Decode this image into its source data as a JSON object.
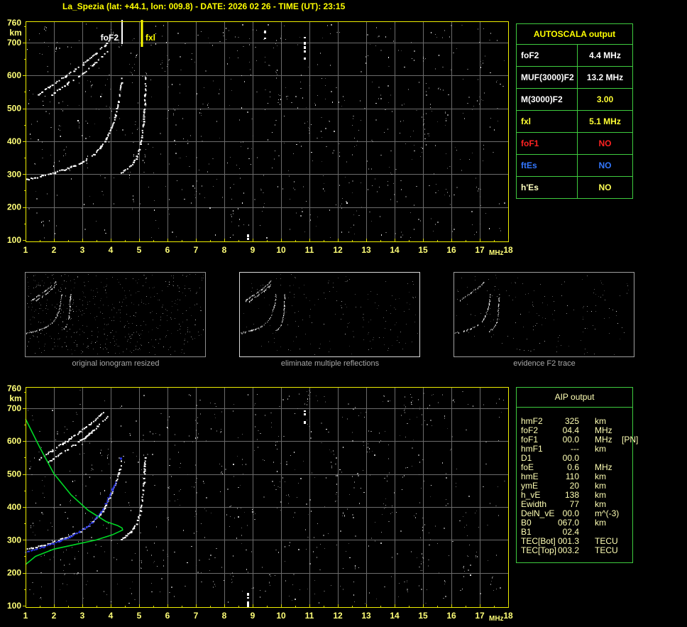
{
  "title": "La_Spezia (lat: +44.1, lon: 009.8) - DATE: 2026 02 26 - TIME (UT): 23:15",
  "colors": {
    "background": "#000000",
    "title_text": "#ffff00",
    "axis_label": "#ffff78",
    "plot_border": "#eded00",
    "grid": "#6b6b6b",
    "trace_white": "#ffffff",
    "profile_green": "#00d926",
    "restored_blue": "#2b37e8",
    "table_border": "#3ecb3e",
    "table_white": "#ffffff",
    "table_yellow": "#ffff33",
    "table_red": "#ff2222",
    "table_blue": "#3377ff",
    "aip_text": "#ffffb4",
    "caption_gray": "#a8a8a8"
  },
  "autoscala": {
    "title": "AUTOSCALA output",
    "rows": [
      {
        "label": "foF2",
        "value": "4.4 MHz",
        "label_color": "#ffffff",
        "value_color": "#ffffff"
      },
      {
        "label": "MUF(3000)F2",
        "value": "13.2 MHz",
        "label_color": "#ffffff",
        "value_color": "#ffffff"
      },
      {
        "label": "M(3000)F2",
        "value": "3.00",
        "label_color": "#ffffff",
        "value_color": "#ffff33"
      },
      {
        "label": "fxl",
        "value": "5.1 MHz",
        "label_color": "#ffff33",
        "value_color": "#ffff33"
      },
      {
        "label": "foF1",
        "value": "NO",
        "label_color": "#ff2222",
        "value_color": "#ff2222"
      },
      {
        "label": "ftEs",
        "value": "NO",
        "label_color": "#3377ff",
        "value_color": "#3377ff"
      },
      {
        "label": "h'Es",
        "value": "NO",
        "label_color": "#ffffc0",
        "value_color": "#ffff55"
      }
    ]
  },
  "thumbnails": [
    {
      "caption": "original ionogram resized"
    },
    {
      "caption": "eliminate multiple reflections"
    },
    {
      "caption": "evidence F2 trace"
    }
  ],
  "aip": {
    "title": "AIP output",
    "rows": [
      {
        "label": "hmF2",
        "value": "325",
        "unit": "km",
        "extra": ""
      },
      {
        "label": "foF2",
        "value": "04.4",
        "unit": "MHz",
        "extra": ""
      },
      {
        "label": "foF1",
        "value": "00.0",
        "unit": "MHz",
        "extra": "[PN]"
      },
      {
        "label": "hmF1",
        "value": "---",
        "unit": "km",
        "extra": ""
      },
      {
        "label": "D1",
        "value": "00.0",
        "unit": "",
        "extra": ""
      },
      {
        "label": "foE",
        "value": "0.6",
        "unit": "MHz",
        "extra": ""
      },
      {
        "label": "hmE",
        "value": "110",
        "unit": "km",
        "extra": ""
      },
      {
        "label": "ymE",
        "value": "20",
        "unit": "km",
        "extra": ""
      },
      {
        "label": "h_vE",
        "value": "138",
        "unit": "km",
        "extra": ""
      },
      {
        "label": "Ewidth",
        "value": "77",
        "unit": "km",
        "extra": ""
      },
      {
        "label": "DelN_vE",
        "value": "00.0",
        "unit": "m^(-3)",
        "extra": ""
      },
      {
        "label": "B0",
        "value": "067.0",
        "unit": "km",
        "extra": ""
      },
      {
        "label": "B1",
        "value": "02.4",
        "unit": "",
        "extra": ""
      },
      {
        "label": "TEC[Bot]",
        "value": "001.3",
        "unit": "TECU",
        "extra": ""
      },
      {
        "label": "TEC[Top]",
        "value": "003.2",
        "unit": "TECU",
        "extra": ""
      }
    ]
  },
  "chart_data": [
    {
      "type": "scatter",
      "id": "top-ionogram",
      "title": "recorded ionogram with AUTOSCALA critical frequency markers",
      "xlabel": "MHz",
      "ylabel": "km",
      "xlim": [
        1,
        18
      ],
      "ylim": [
        100,
        760
      ],
      "grid": true,
      "x_ticks": [
        1,
        2,
        3,
        4,
        5,
        6,
        7,
        8,
        9,
        10,
        11,
        12,
        13,
        14,
        15,
        16,
        17,
        18
      ],
      "y_ticks": [
        760,
        700,
        600,
        500,
        400,
        300,
        200,
        100
      ],
      "markers": [
        {
          "label": "foF2",
          "freq_mhz": 4.4,
          "color": "#ffffff"
        },
        {
          "label": "fxl",
          "freq_mhz": 5.1,
          "color": "#ffff00"
        }
      ],
      "series": [
        {
          "name": "F2 ordinary trace",
          "color": "#ffffff",
          "gap": 0.18,
          "size": 2,
          "points": [
            [
              1.0,
              285
            ],
            [
              1.5,
              295
            ],
            [
              2.0,
              306
            ],
            [
              2.5,
              320
            ],
            [
              2.9,
              334
            ],
            [
              3.2,
              349
            ],
            [
              3.45,
              366
            ],
            [
              3.65,
              386
            ],
            [
              3.8,
              406
            ],
            [
              3.95,
              432
            ],
            [
              4.08,
              460
            ],
            [
              4.18,
              492
            ],
            [
              4.27,
              528
            ],
            [
              4.33,
              562
            ],
            [
              4.37,
              600
            ]
          ]
        },
        {
          "name": "F2 extraordinary trace",
          "color": "#ffffff",
          "gap": 0.22,
          "size": 2,
          "points": [
            [
              4.3,
              302
            ],
            [
              4.55,
              316
            ],
            [
              4.75,
              333
            ],
            [
              4.9,
              354
            ],
            [
              5.0,
              380
            ],
            [
              5.08,
              415
            ],
            [
              5.13,
              455
            ],
            [
              5.17,
              505
            ],
            [
              5.2,
              560
            ],
            [
              5.22,
              600
            ]
          ]
        },
        {
          "name": "second hop trace 1",
          "color": "#ffffff",
          "gap": 0.3,
          "size": 2,
          "points": [
            [
              1.45,
              545
            ],
            [
              1.9,
              572
            ],
            [
              2.4,
              600
            ],
            [
              2.9,
              630
            ],
            [
              3.35,
              660
            ],
            [
              3.75,
              692
            ],
            [
              3.95,
              710
            ]
          ]
        },
        {
          "name": "second hop trace 2",
          "color": "#ffffff",
          "gap": 0.34,
          "size": 2,
          "points": [
            [
              1.8,
              538
            ],
            [
              2.25,
              564
            ],
            [
              2.7,
              590
            ],
            [
              3.15,
              618
            ],
            [
              3.55,
              648
            ],
            [
              3.9,
              678
            ]
          ]
        }
      ],
      "interference_streaks": [
        {
          "x_mhz": 10.84,
          "km_from": 650,
          "km_to": 715
        },
        {
          "x_mhz": 9.45,
          "km_from": 712,
          "km_to": 748
        },
        {
          "x_mhz": 8.86,
          "km_from": 100,
          "km_to": 126
        }
      ]
    },
    {
      "type": "scatter",
      "id": "bottom-ionogram",
      "title": "ionogram with restored trace and electron density profile",
      "xlabel": "MHz",
      "ylabel": "km",
      "xlim": [
        1,
        18
      ],
      "ylim": [
        100,
        760
      ],
      "grid": true,
      "x_ticks": [
        1,
        2,
        3,
        4,
        5,
        6,
        7,
        8,
        9,
        10,
        11,
        12,
        13,
        14,
        15,
        16,
        17,
        18
      ],
      "y_ticks": [
        760,
        700,
        600,
        500,
        400,
        300,
        200,
        100
      ],
      "markers": [],
      "series": [
        {
          "name": "F2 ordinary trace",
          "color": "#ffffff",
          "gap": 0.28,
          "size": 2,
          "points": [
            [
              1.0,
              272
            ],
            [
              1.5,
              283
            ],
            [
              2.0,
              296
            ],
            [
              2.5,
              312
            ],
            [
              2.9,
              328
            ],
            [
              3.2,
              344
            ],
            [
              3.5,
              368
            ],
            [
              3.7,
              390
            ],
            [
              3.85,
              412
            ],
            [
              4.0,
              440
            ],
            [
              4.15,
              472
            ],
            [
              4.28,
              508
            ],
            [
              4.38,
              545
            ]
          ]
        },
        {
          "name": "F2 extraordinary trace",
          "color": "#ffffff",
          "gap": 0.24,
          "size": 2,
          "points": [
            [
              4.3,
              302
            ],
            [
              4.55,
              316
            ],
            [
              4.75,
              333
            ],
            [
              4.9,
              354
            ],
            [
              5.0,
              380
            ],
            [
              5.08,
              415
            ],
            [
              5.13,
              455
            ],
            [
              5.17,
              505
            ],
            [
              5.2,
              555
            ]
          ]
        },
        {
          "name": "second hop trace 1",
          "color": "#ffffff",
          "gap": 0.3,
          "size": 2,
          "points": [
            [
              1.45,
              545
            ],
            [
              1.9,
              572
            ],
            [
              2.4,
              600
            ],
            [
              2.9,
              630
            ],
            [
              3.35,
              660
            ],
            [
              3.75,
              692
            ]
          ]
        },
        {
          "name": "second hop trace 2",
          "color": "#ffffff",
          "gap": 0.34,
          "size": 2,
          "points": [
            [
              1.8,
              538
            ],
            [
              2.25,
              564
            ],
            [
              2.7,
              590
            ],
            [
              3.15,
              618
            ],
            [
              3.55,
              648
            ],
            [
              3.9,
              678
            ]
          ]
        },
        {
          "name": "electron density profile",
          "color": "#00d926",
          "render": "line",
          "points": [
            [
              1.0,
              667
            ],
            [
              1.5,
              581
            ],
            [
              2.0,
              501
            ],
            [
              2.6,
              437
            ],
            [
              3.2,
              390
            ],
            [
              3.85,
              355
            ],
            [
              4.25,
              343
            ],
            [
              4.4,
              336
            ],
            [
              4.42,
              330
            ],
            [
              4.3,
              325
            ],
            [
              4.05,
              315
            ],
            [
              3.5,
              300
            ],
            [
              2.75,
              286
            ],
            [
              2.0,
              272
            ],
            [
              1.35,
              250
            ],
            [
              1.0,
              225
            ]
          ]
        },
        {
          "name": "restored F2 trace",
          "color": "#2b37e8",
          "gap": 0.08,
          "size": 2,
          "points": [
            [
              1.0,
              266
            ],
            [
              1.5,
              277
            ],
            [
              2.0,
              292
            ],
            [
              2.5,
              310
            ],
            [
              2.9,
              327
            ],
            [
              3.2,
              345
            ],
            [
              3.45,
              365
            ],
            [
              3.65,
              388
            ],
            [
              3.8,
              410
            ],
            [
              3.95,
              437
            ],
            [
              4.08,
              462
            ],
            [
              4.2,
              480
            ]
          ]
        }
      ],
      "isolated_points": [
        {
          "x_mhz": 4.36,
          "km": 547,
          "color": "#2b37e8"
        }
      ],
      "interference_streaks": [
        {
          "x_mhz": 10.84,
          "km_from": 650,
          "km_to": 707
        },
        {
          "x_mhz": 8.86,
          "km_from": 100,
          "km_to": 138
        }
      ]
    }
  ]
}
